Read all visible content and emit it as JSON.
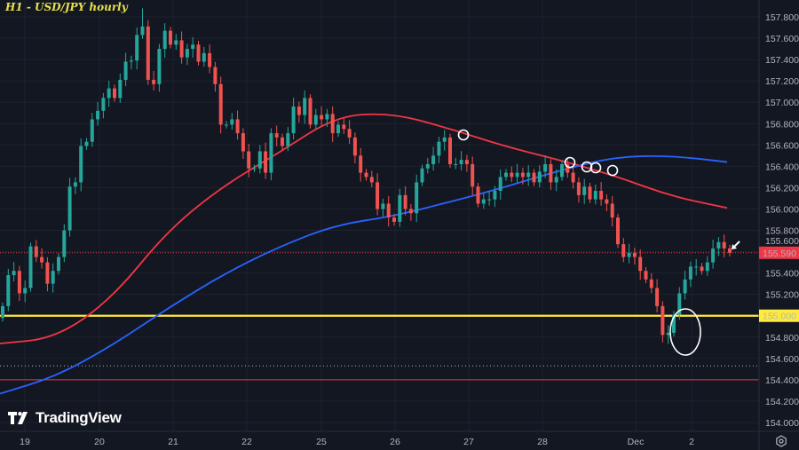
{
  "header": {
    "title": "H1 - USD/JPY hourly"
  },
  "branding": {
    "logo_text": "TradingView"
  },
  "colors": {
    "background": "#131722",
    "up": "#26a69a",
    "down": "#ef5350",
    "ma_red": "#f23645",
    "ma_blue": "#2962ff",
    "support": "#ffeb3b",
    "level_red": "#f23645"
  },
  "chart_data": {
    "type": "candlestick",
    "title": "H1 - USD/JPY hourly",
    "timeframe": "hourly",
    "x_tick_labels": [
      "19",
      "20",
      "21",
      "22",
      "25",
      "26",
      "27",
      "28",
      "Dec",
      "2"
    ],
    "y_tick_labels": [
      "157.800",
      "157.600",
      "157.400",
      "157.200",
      "157.000",
      "156.800",
      "156.600",
      "156.400",
      "156.200",
      "156.000",
      "155.800",
      "155.600",
      "155.400",
      "155.200",
      "155.000",
      "154.800",
      "154.600",
      "154.400",
      "154.200",
      "154.000"
    ],
    "ylim": [
      153.95,
      157.95
    ],
    "grid": true,
    "first_open": 154.98,
    "closes": [
      155.09,
      155.38,
      155.42,
      155.21,
      155.26,
      155.65,
      155.55,
      155.5,
      155.3,
      155.42,
      155.55,
      155.8,
      156.21,
      156.25,
      156.59,
      156.63,
      156.84,
      156.92,
      157.04,
      157.13,
      157.04,
      157.21,
      157.38,
      157.39,
      157.63,
      157.71,
      157.21,
      157.17,
      157.5,
      157.67,
      157.54,
      157.58,
      157.42,
      157.5,
      157.54,
      157.38,
      157.46,
      157.33,
      157.17,
      156.79,
      156.79,
      156.84,
      156.71,
      156.54,
      156.38,
      156.38,
      156.54,
      156.34,
      156.71,
      156.67,
      156.59,
      156.71,
      156.96,
      156.88,
      157.04,
      156.79,
      156.88,
      156.84,
      156.89,
      156.71,
      156.79,
      156.75,
      156.67,
      156.5,
      156.34,
      156.3,
      156.25,
      156.0,
      156.05,
      155.92,
      155.88,
      156.13,
      156.0,
      155.96,
      156.25,
      156.38,
      156.42,
      156.5,
      156.63,
      156.67,
      156.42,
      156.42,
      156.46,
      156.42,
      156.21,
      156.05,
      156.09,
      156.09,
      156.17,
      156.3,
      156.34,
      156.3,
      156.34,
      156.3,
      156.34,
      156.25,
      156.35,
      156.42,
      156.25,
      156.3,
      156.42,
      156.34,
      156.25,
      156.13,
      156.21,
      156.09,
      156.17,
      156.09,
      156.05,
      155.92,
      155.67,
      155.55,
      155.59,
      155.55,
      155.42,
      155.34,
      155.26,
      155.09,
      154.82,
      154.84,
      155.01,
      155.21,
      155.34,
      155.46,
      155.46,
      155.42,
      155.5,
      155.63,
      155.69,
      155.63,
      155.59
    ],
    "notable_extremes": {
      "high": 157.88,
      "low": 154.75
    },
    "moving_averages": [
      {
        "color": "#f23645",
        "values": [
          154.74,
          154.79,
          155.16,
          155.8,
          156.22,
          156.53,
          156.87,
          156.9,
          156.76,
          156.59,
          156.46,
          156.31,
          156.12,
          156.01
        ]
      },
      {
        "color": "#2962ff",
        "values": [
          154.27,
          154.43,
          154.72,
          155.07,
          155.39,
          155.65,
          155.85,
          155.93,
          156.06,
          156.2,
          156.36,
          156.49,
          156.5,
          156.44
        ]
      }
    ],
    "horizontal_levels": [
      {
        "price": 155.0,
        "label": "155.000",
        "color": "#ffeb3b",
        "style": "solid"
      },
      {
        "price": 154.4,
        "color": "#f23645",
        "style": "solid"
      },
      {
        "price": 154.53,
        "color": "#b2b5be",
        "style": "dotted"
      }
    ],
    "last_price": {
      "price": 155.59,
      "label": "155.590",
      "color": "#f23645"
    }
  }
}
